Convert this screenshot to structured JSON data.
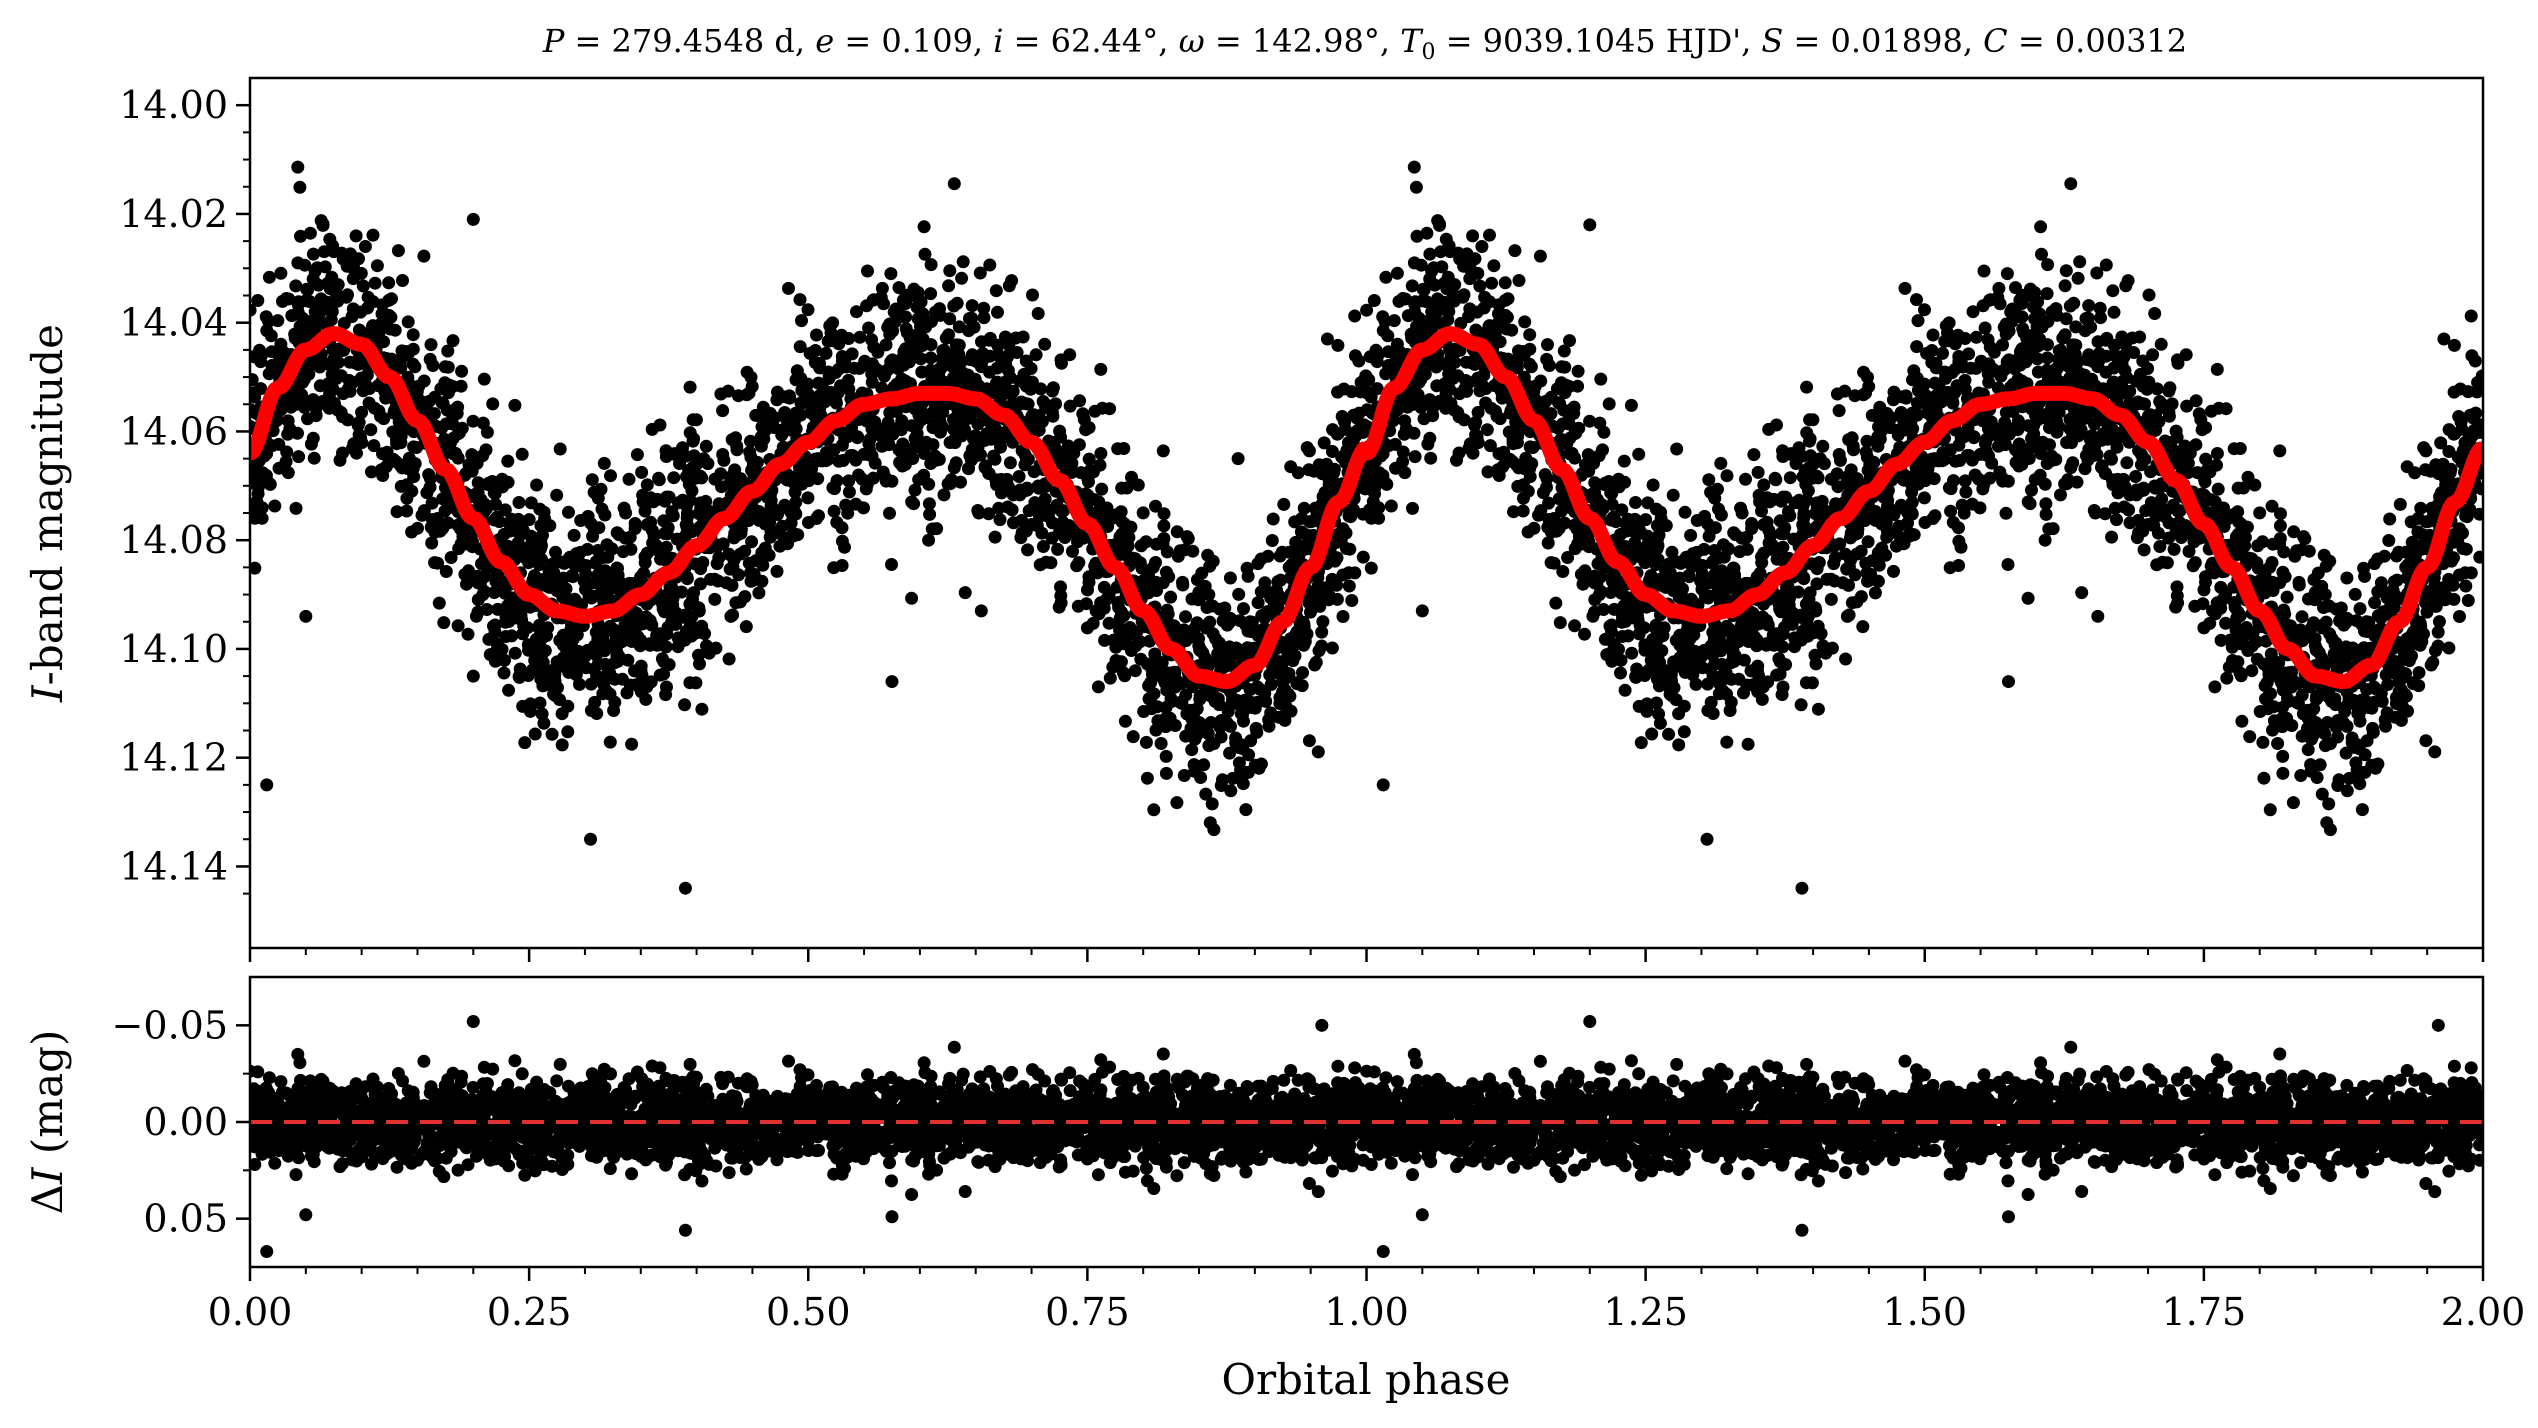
{
  "chart_data": [
    {
      "type": "scatter",
      "panel": "top",
      "title": "P = 279.4548 d, e = 0.109, i = 62.44°, ω = 142.98°, T0 = 9039.1045 HJD', S = 0.01898, C = 0.00312",
      "title_parts": [
        "P",
        " = 279.4548 d, ",
        "e",
        " = 0.109, ",
        "i",
        " = 62.44°, ",
        "ω",
        " = 142.98°, ",
        "T",
        "0",
        " = 9039.1045 HJD', ",
        "S",
        " = 0.01898, ",
        "C",
        " = 0.00312"
      ],
      "xlabel": "Orbital phase",
      "ylabel_italic": "I",
      "ylabel_rest": "-band magnitude",
      "xlim": [
        0,
        2
      ],
      "ylim": [
        14.155,
        13.995
      ],
      "y_inverted": true,
      "yticks": [
        14.0,
        14.02,
        14.04,
        14.06,
        14.08,
        14.1,
        14.12,
        14.14
      ],
      "ytick_labels": [
        "14.00",
        "14.02",
        "14.04",
        "14.06",
        "14.08",
        "14.10",
        "14.12",
        "14.14"
      ],
      "xticks": [
        0,
        0.25,
        0.5,
        0.75,
        1.0,
        1.25,
        1.5,
        1.75,
        2.0
      ],
      "point_color": "#000000",
      "model_color": "#ff0000",
      "model_curve": {
        "phase": [
          0.0,
          0.025,
          0.05,
          0.075,
          0.1,
          0.125,
          0.15,
          0.175,
          0.2,
          0.225,
          0.25,
          0.275,
          0.3,
          0.325,
          0.35,
          0.375,
          0.4,
          0.425,
          0.45,
          0.475,
          0.5,
          0.525,
          0.55,
          0.575,
          0.6,
          0.625,
          0.65,
          0.675,
          0.7,
          0.725,
          0.75,
          0.775,
          0.8,
          0.825,
          0.85,
          0.875,
          0.9,
          0.925,
          0.95,
          0.975,
          1.0
        ],
        "magnitude": [
          14.064,
          14.052,
          14.045,
          14.042,
          14.044,
          14.05,
          14.058,
          14.067,
          14.076,
          14.084,
          14.09,
          14.093,
          14.094,
          14.093,
          14.09,
          14.086,
          14.081,
          14.076,
          14.071,
          14.066,
          14.062,
          14.058,
          14.055,
          14.054,
          14.053,
          14.053,
          14.054,
          14.057,
          14.062,
          14.069,
          14.077,
          14.085,
          14.093,
          14.1,
          14.105,
          14.106,
          14.103,
          14.095,
          14.085,
          14.073,
          14.063
        ]
      },
      "outliers": [
        [
          0.015,
          14.125
        ],
        [
          0.05,
          14.094
        ],
        [
          0.2,
          14.021
        ],
        [
          0.2,
          14.105
        ],
        [
          0.305,
          14.135
        ],
        [
          0.39,
          14.144
        ],
        [
          0.575,
          14.106
        ],
        [
          0.655,
          14.093
        ],
        [
          0.885,
          14.065
        ],
        [
          0.965,
          14.043
        ],
        [
          1.015,
          14.125
        ],
        [
          1.05,
          14.093
        ],
        [
          1.2,
          14.022
        ],
        [
          1.305,
          14.135
        ],
        [
          1.39,
          14.144
        ],
        [
          1.575,
          14.106
        ],
        [
          1.655,
          14.094
        ],
        [
          1.965,
          14.043
        ]
      ]
    },
    {
      "type": "scatter",
      "panel": "bottom",
      "xlabel": "Orbital phase",
      "ylabel_symbol": "ΔI",
      "ylabel_rest": " (mag)",
      "xlim": [
        0,
        2
      ],
      "ylim": [
        0.075,
        -0.075
      ],
      "y_inverted": true,
      "yticks": [
        -0.05,
        0.0,
        0.05
      ],
      "ytick_labels": [
        "−0.05",
        "0.00",
        "0.05"
      ],
      "xticks": [
        0,
        0.25,
        0.5,
        0.75,
        1.0,
        1.25,
        1.5,
        1.75,
        2.0
      ],
      "xtick_labels": [
        "0.00",
        "0.25",
        "0.50",
        "0.75",
        "1.00",
        "1.25",
        "1.50",
        "1.75",
        "2.00"
      ],
      "zero_line": 0.0,
      "zero_line_color": "#e03030",
      "point_color": "#000000",
      "outliers": [
        [
          0.015,
          0.067
        ],
        [
          0.05,
          0.048
        ],
        [
          0.2,
          -0.052
        ],
        [
          0.39,
          0.056
        ],
        [
          0.575,
          0.049
        ],
        [
          0.96,
          -0.05
        ],
        [
          1.015,
          0.067
        ],
        [
          1.05,
          0.048
        ],
        [
          1.2,
          -0.052
        ],
        [
          1.39,
          0.056
        ],
        [
          1.575,
          0.049
        ],
        [
          1.96,
          -0.05
        ]
      ]
    }
  ]
}
